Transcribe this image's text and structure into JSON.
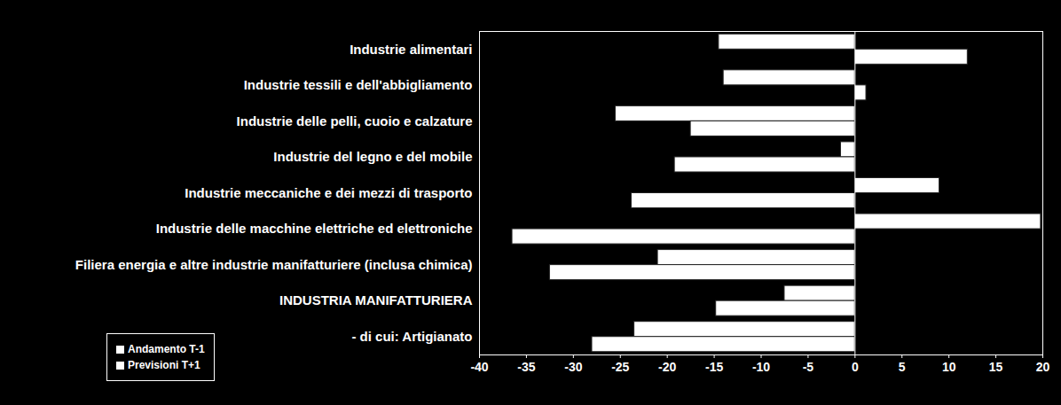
{
  "chart_data": {
    "type": "bar",
    "orientation": "horizontal",
    "categories": [
      "Industrie alimentari",
      "Industrie tessili e dell'abbigliamento",
      "Industrie delle pelli, cuoio e calzature",
      "Industrie del legno e del mobile",
      "Industrie meccaniche e dei mezzi di trasporto",
      "Industrie delle macchine elettriche ed elettroniche",
      "Filiera energia e altre industrie manifatturiere (inclusa chimica)",
      "INDUSTRIA MANIFATTURIERA",
      "- di cui: Artigianato"
    ],
    "series": [
      {
        "name": "Andamento T-1",
        "color": "#ffffff",
        "values": [
          -14.5,
          -14,
          -25.5,
          -1.5,
          9,
          19.8,
          -21,
          -7.5,
          -23.5
        ]
      },
      {
        "name": "Previsioni T+1",
        "color": "#ffffff",
        "values": [
          12,
          1.2,
          -17.5,
          -19.2,
          -23.8,
          -36.5,
          -32.5,
          -14.8,
          -28
        ]
      }
    ],
    "xlim": [
      -40,
      20
    ],
    "xticks": [
      -40,
      -35,
      -30,
      -25,
      -20,
      -15,
      -10,
      -5,
      0,
      5,
      10,
      15,
      20
    ],
    "grid": false,
    "legend": "bottom-left"
  }
}
